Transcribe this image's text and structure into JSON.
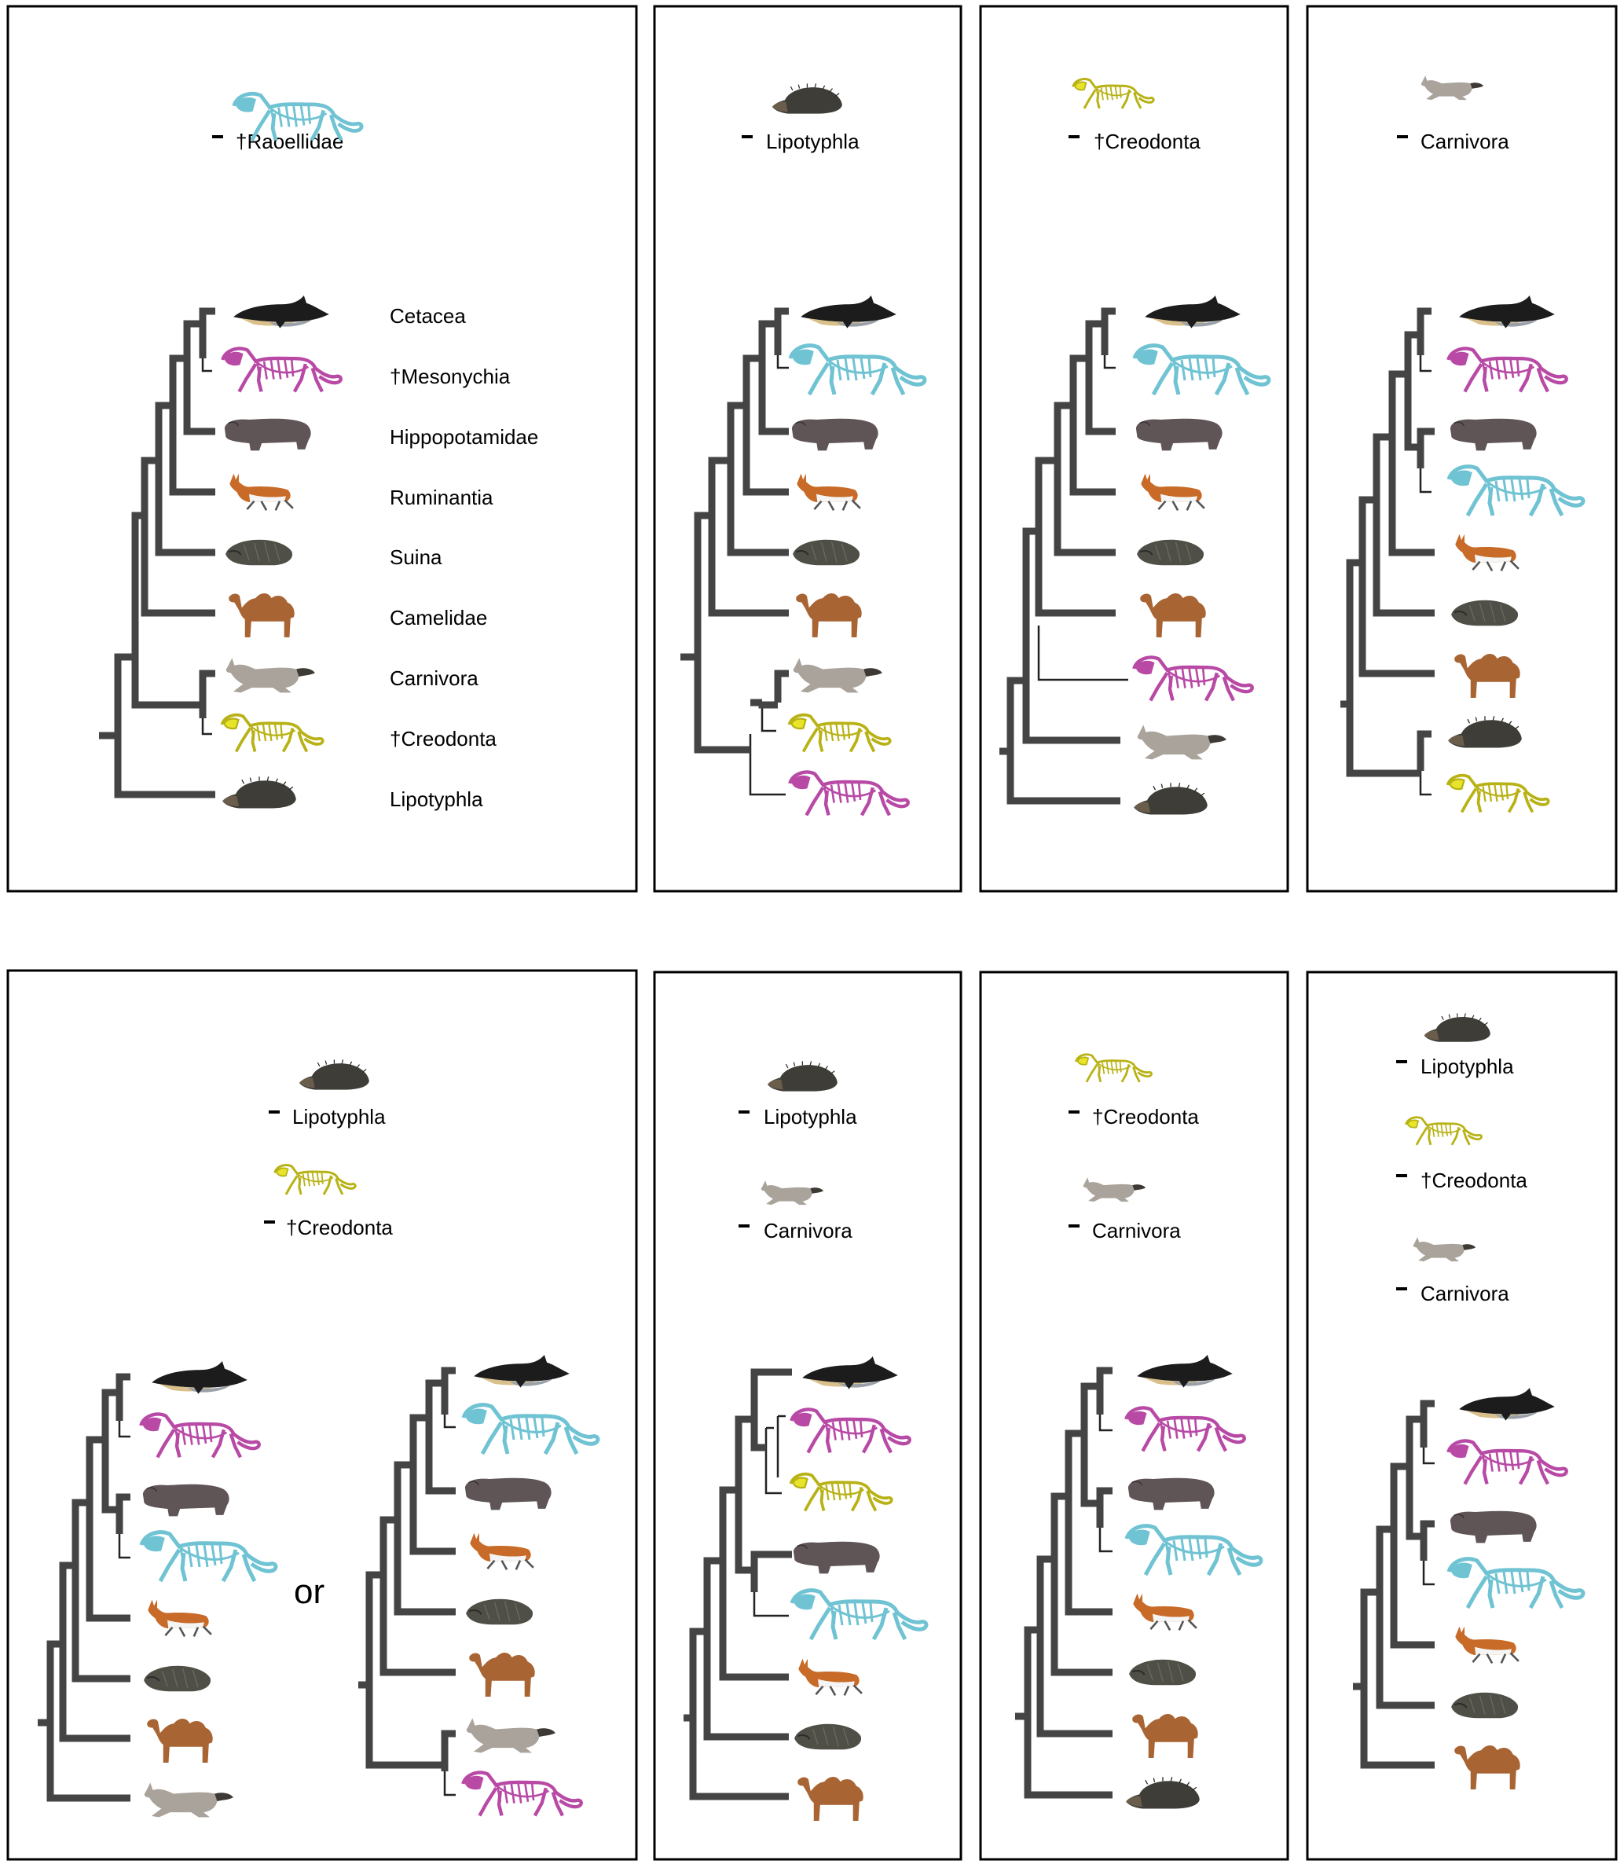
{
  "labels": {
    "cetacea": "Cetacea",
    "mesonychia": "†Mesonychia",
    "hippopotamidae": "Hippopotamidae",
    "ruminantia": "Ruminantia",
    "suina": "Suina",
    "camelidae": "Camelidae",
    "carnivora": "Carnivora",
    "creodonta": "†Creodonta",
    "lipotyphla": "Lipotyphla",
    "raoellidae": "†Raoellidae",
    "or": "or"
  },
  "colors": {
    "raoellid": "#6fc3d3",
    "mesonychid": "#b84aa6",
    "creodont": "#e8e42a",
    "dolphin": "#1c1c1c",
    "hippo": "#5f5557",
    "pronghorn": "#c86b28",
    "peccary": "#4f4f47",
    "camel": "#a86433",
    "wolf": "#a9a39b",
    "hedgehog": "#3e3d37",
    "branch": "#444444"
  },
  "icons": {
    "dolphin": "dolphin-icon",
    "mesonychid": "mesonychid-skeleton-icon",
    "raoellid": "raoellid-skeleton-icon",
    "creodont": "creodont-skeleton-icon",
    "hippo": "hippopotamus-icon",
    "pronghorn": "pronghorn-icon",
    "peccary": "peccary-icon",
    "camel": "camel-icon",
    "wolf": "wolf-icon",
    "hedgehog": "hedgehog-icon"
  },
  "panels": [
    {
      "removed": [
        "raoellid"
      ],
      "tips": [
        "dolphin",
        "mesonychid",
        "hippo",
        "pronghorn",
        "peccary",
        "camel",
        "wolf",
        "creodont",
        "hedgehog"
      ],
      "tip_labels": [
        "cetacea",
        "mesonychia",
        "hippopotamidae",
        "ruminantia",
        "suina",
        "camelidae",
        "carnivora",
        "creodonta",
        "lipotyphla"
      ]
    },
    {
      "removed": [
        "hedgehog"
      ],
      "tips": [
        "dolphin",
        "raoellid",
        "hippo",
        "pronghorn",
        "peccary",
        "camel",
        "wolf",
        "creodont",
        "mesonychid"
      ]
    },
    {
      "removed": [
        "creodont"
      ],
      "tips": [
        "dolphin",
        "raoellid",
        "hippo",
        "pronghorn",
        "peccary",
        "camel",
        "mesonychid",
        "wolf",
        "hedgehog"
      ]
    },
    {
      "removed": [
        "wolf"
      ],
      "tips": [
        "dolphin",
        "mesonychid",
        "hippo",
        "raoellid",
        "pronghorn",
        "peccary",
        "camel",
        "hedgehog",
        "creodont"
      ]
    },
    {
      "removed": [
        "hedgehog",
        "creodont"
      ],
      "trees": [
        {
          "tips": [
            "dolphin",
            "mesonychid",
            "hippo",
            "raoellid",
            "pronghorn",
            "peccary",
            "camel",
            "wolf"
          ]
        },
        {
          "tips": [
            "dolphin",
            "raoellid",
            "hippo",
            "pronghorn",
            "peccary",
            "camel",
            "wolf",
            "mesonychid"
          ]
        }
      ]
    },
    {
      "removed": [
        "hedgehog",
        "wolf"
      ],
      "tips": [
        "dolphin",
        "mesonychid",
        "creodont",
        "hippo",
        "raoellid",
        "pronghorn",
        "peccary",
        "camel"
      ]
    },
    {
      "removed": [
        "creodont",
        "wolf"
      ],
      "tips": [
        "dolphin",
        "mesonychid",
        "hippo",
        "raoellid",
        "pronghorn",
        "peccary",
        "camel",
        "hedgehog"
      ]
    },
    {
      "removed": [
        "hedgehog",
        "creodont",
        "wolf"
      ],
      "tips": [
        "dolphin",
        "mesonychid",
        "hippo",
        "raoellid",
        "pronghorn",
        "peccary",
        "camel"
      ]
    }
  ]
}
